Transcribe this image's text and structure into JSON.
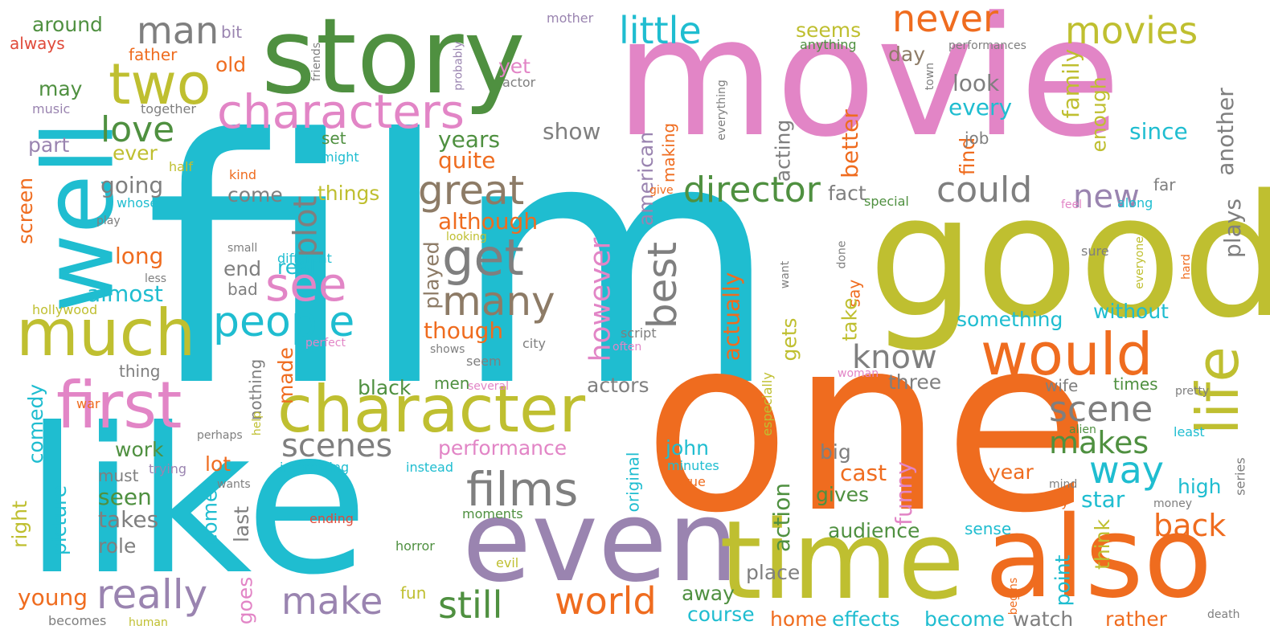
{
  "palette": {
    "cyan": "#1fbdd0",
    "orange": "#ef6c1f",
    "pink": "#e285c6",
    "olive": "#bfbf30",
    "green": "#4f9040",
    "gray": "#7f7f7f",
    "purple": "#9a84b0",
    "taupe": "#8d7b66",
    "red": "#e04a3a"
  },
  "words": [
    {
      "text": "film",
      "color": "cyan"
    },
    {
      "text": "movie",
      "color": "pink"
    },
    {
      "text": "one",
      "color": "orange"
    },
    {
      "text": "like",
      "color": "cyan"
    },
    {
      "text": "good",
      "color": "olive"
    },
    {
      "text": "even",
      "color": "purple"
    },
    {
      "text": "time",
      "color": "olive"
    },
    {
      "text": "also",
      "color": "orange"
    },
    {
      "text": "story",
      "color": "green"
    },
    {
      "text": "well",
      "color": "cyan"
    },
    {
      "text": "character",
      "color": "olive"
    },
    {
      "text": "much",
      "color": "olive"
    },
    {
      "text": "first",
      "color": "pink"
    },
    {
      "text": "two",
      "color": "olive"
    },
    {
      "text": "characters",
      "color": "pink"
    },
    {
      "text": "would",
      "color": "orange"
    },
    {
      "text": "life",
      "color": "olive"
    },
    {
      "text": "films",
      "color": "gray"
    },
    {
      "text": "see",
      "color": "pink"
    },
    {
      "text": "people",
      "color": "cyan"
    },
    {
      "text": "get",
      "color": "gray"
    },
    {
      "text": "many",
      "color": "taupe"
    },
    {
      "text": "great",
      "color": "taupe"
    },
    {
      "text": "best",
      "color": "gray"
    },
    {
      "text": "really",
      "color": "purple"
    },
    {
      "text": "make",
      "color": "purple"
    },
    {
      "text": "world",
      "color": "orange"
    },
    {
      "text": "still",
      "color": "green"
    },
    {
      "text": "way",
      "color": "cyan"
    },
    {
      "text": "scene",
      "color": "gray"
    },
    {
      "text": "scenes",
      "color": "gray"
    },
    {
      "text": "man",
      "color": "gray"
    },
    {
      "text": "little",
      "color": "cyan"
    },
    {
      "text": "movies",
      "color": "olive"
    },
    {
      "text": "never",
      "color": "orange"
    },
    {
      "text": "director",
      "color": "green"
    },
    {
      "text": "could",
      "color": "gray"
    },
    {
      "text": "new",
      "color": "purple"
    },
    {
      "text": "love",
      "color": "green"
    },
    {
      "text": "plot",
      "color": "gray"
    },
    {
      "text": "know",
      "color": "gray"
    },
    {
      "text": "makes",
      "color": "green"
    },
    {
      "text": "back",
      "color": "orange"
    },
    {
      "text": "however",
      "color": "pink"
    },
    {
      "text": "performance",
      "color": "pink"
    },
    {
      "text": "around",
      "color": "green"
    },
    {
      "text": "always",
      "color": "red"
    },
    {
      "text": "bit",
      "color": "purple"
    },
    {
      "text": "mother",
      "color": "purple"
    },
    {
      "text": "friends",
      "color": "gray"
    },
    {
      "text": "probably",
      "color": "purple"
    },
    {
      "text": "seems",
      "color": "olive"
    },
    {
      "text": "anything",
      "color": "green"
    },
    {
      "text": "performances",
      "color": "gray"
    },
    {
      "text": "father",
      "color": "orange"
    },
    {
      "text": "old",
      "color": "orange"
    },
    {
      "text": "may",
      "color": "green"
    },
    {
      "text": "music",
      "color": "purple"
    },
    {
      "text": "together",
      "color": "gray"
    },
    {
      "text": "yet",
      "color": "pink"
    },
    {
      "text": "actor",
      "color": "gray"
    },
    {
      "text": "town",
      "color": "gray"
    },
    {
      "text": "day",
      "color": "taupe"
    },
    {
      "text": "look",
      "color": "gray"
    },
    {
      "text": "every",
      "color": "cyan"
    },
    {
      "text": "enough",
      "color": "olive"
    },
    {
      "text": "family",
      "color": "olive"
    },
    {
      "text": "another",
      "color": "gray"
    },
    {
      "text": "since",
      "color": "cyan"
    },
    {
      "text": "part",
      "color": "purple"
    },
    {
      "text": "ever",
      "color": "olive"
    },
    {
      "text": "half",
      "color": "olive"
    },
    {
      "text": "set",
      "color": "green"
    },
    {
      "text": "might",
      "color": "cyan"
    },
    {
      "text": "years",
      "color": "green"
    },
    {
      "text": "quite",
      "color": "orange"
    },
    {
      "text": "show",
      "color": "gray"
    },
    {
      "text": "everything",
      "color": "gray"
    },
    {
      "text": "making",
      "color": "orange"
    },
    {
      "text": "acting",
      "color": "gray"
    },
    {
      "text": "better",
      "color": "orange"
    },
    {
      "text": "find",
      "color": "orange"
    },
    {
      "text": "job",
      "color": "gray"
    },
    {
      "text": "plays",
      "color": "gray"
    },
    {
      "text": "screen",
      "color": "orange"
    },
    {
      "text": "kind",
      "color": "orange"
    },
    {
      "text": "whose",
      "color": "cyan"
    },
    {
      "text": "going",
      "color": "gray"
    },
    {
      "text": "come",
      "color": "gray"
    },
    {
      "text": "things",
      "color": "olive"
    },
    {
      "text": "american",
      "color": "purple"
    },
    {
      "text": "give",
      "color": "orange"
    },
    {
      "text": "fact",
      "color": "gray"
    },
    {
      "text": "special",
      "color": "green"
    },
    {
      "text": "far",
      "color": "gray"
    },
    {
      "text": "feel",
      "color": "pink"
    },
    {
      "text": "along",
      "color": "cyan"
    },
    {
      "text": "play",
      "color": "gray"
    },
    {
      "text": "although",
      "color": "orange"
    },
    {
      "text": "looking",
      "color": "olive"
    },
    {
      "text": "long",
      "color": "orange"
    },
    {
      "text": "small",
      "color": "gray"
    },
    {
      "text": "different",
      "color": "cyan"
    },
    {
      "text": "less",
      "color": "gray"
    },
    {
      "text": "end",
      "color": "gray"
    },
    {
      "text": "real",
      "color": "cyan"
    },
    {
      "text": "done",
      "color": "gray"
    },
    {
      "text": "want",
      "color": "gray"
    },
    {
      "text": "sure",
      "color": "gray"
    },
    {
      "text": "everyone",
      "color": "olive"
    },
    {
      "text": "hard",
      "color": "orange"
    },
    {
      "text": "almost",
      "color": "cyan"
    },
    {
      "text": "bad",
      "color": "gray"
    },
    {
      "text": "played",
      "color": "taupe"
    },
    {
      "text": "say",
      "color": "orange"
    },
    {
      "text": "hollywood",
      "color": "olive"
    },
    {
      "text": "actually",
      "color": "orange"
    },
    {
      "text": "take",
      "color": "olive"
    },
    {
      "text": "something",
      "color": "cyan"
    },
    {
      "text": "without",
      "color": "cyan"
    },
    {
      "text": "script",
      "color": "gray"
    },
    {
      "text": "though",
      "color": "orange"
    },
    {
      "text": "perfect",
      "color": "pink"
    },
    {
      "text": "shows",
      "color": "gray"
    },
    {
      "text": "city",
      "color": "gray"
    },
    {
      "text": "often",
      "color": "pink"
    },
    {
      "text": "gets",
      "color": "olive"
    },
    {
      "text": "made",
      "color": "orange"
    },
    {
      "text": "nothing",
      "color": "gray"
    },
    {
      "text": "thing",
      "color": "gray"
    },
    {
      "text": "seem",
      "color": "gray"
    },
    {
      "text": "especially",
      "color": "olive"
    },
    {
      "text": "three",
      "color": "gray"
    },
    {
      "text": "woman",
      "color": "pink"
    },
    {
      "text": "black",
      "color": "green"
    },
    {
      "text": "men",
      "color": "green"
    },
    {
      "text": "several",
      "color": "pink"
    },
    {
      "text": "actors",
      "color": "gray"
    },
    {
      "text": "wife",
      "color": "gray"
    },
    {
      "text": "times",
      "color": "green"
    },
    {
      "text": "pretty",
      "color": "gray"
    },
    {
      "text": "comedy",
      "color": "cyan"
    },
    {
      "text": "war",
      "color": "orange"
    },
    {
      "text": "help",
      "color": "olive"
    },
    {
      "text": "alien",
      "color": "green"
    },
    {
      "text": "perhaps",
      "color": "gray"
    },
    {
      "text": "work",
      "color": "green"
    },
    {
      "text": "john",
      "color": "cyan"
    },
    {
      "text": "least",
      "color": "cyan"
    },
    {
      "text": "big",
      "color": "gray"
    },
    {
      "text": "interesting",
      "color": "cyan"
    },
    {
      "text": "minutes",
      "color": "cyan"
    },
    {
      "text": "year",
      "color": "orange"
    },
    {
      "text": "series",
      "color": "gray"
    },
    {
      "text": "trying",
      "color": "purple"
    },
    {
      "text": "instead",
      "color": "cyan"
    },
    {
      "text": "original",
      "color": "cyan"
    },
    {
      "text": "cast",
      "color": "orange"
    },
    {
      "text": "must",
      "color": "gray"
    },
    {
      "text": "lot",
      "color": "orange"
    },
    {
      "text": "wants",
      "color": "gray"
    },
    {
      "text": "true",
      "color": "orange"
    },
    {
      "text": "mind",
      "color": "gray"
    },
    {
      "text": "high",
      "color": "cyan"
    },
    {
      "text": "right",
      "color": "olive"
    },
    {
      "text": "picture",
      "color": "cyan"
    },
    {
      "text": "seen",
      "color": "green"
    },
    {
      "text": "funny",
      "color": "pink"
    },
    {
      "text": "gives",
      "color": "green"
    },
    {
      "text": "guy",
      "color": "orange"
    },
    {
      "text": "star",
      "color": "cyan"
    },
    {
      "text": "money",
      "color": "gray"
    },
    {
      "text": "takes",
      "color": "gray"
    },
    {
      "text": "comes",
      "color": "cyan"
    },
    {
      "text": "last",
      "color": "gray"
    },
    {
      "text": "ending",
      "color": "red"
    },
    {
      "text": "moments",
      "color": "green"
    },
    {
      "text": "action",
      "color": "green"
    },
    {
      "text": "sense",
      "color": "cyan"
    },
    {
      "text": "think",
      "color": "olive"
    },
    {
      "text": "role",
      "color": "gray"
    },
    {
      "text": "audience",
      "color": "green"
    },
    {
      "text": "horror",
      "color": "green"
    },
    {
      "text": "evil",
      "color": "olive"
    },
    {
      "text": "point",
      "color": "cyan"
    },
    {
      "text": "place",
      "color": "gray"
    },
    {
      "text": "young",
      "color": "orange"
    },
    {
      "text": "goes",
      "color": "pink"
    },
    {
      "text": "fun",
      "color": "olive"
    },
    {
      "text": "away",
      "color": "green"
    },
    {
      "text": "course",
      "color": "cyan"
    },
    {
      "text": "begins",
      "color": "orange"
    },
    {
      "text": "becomes",
      "color": "gray"
    },
    {
      "text": "human",
      "color": "olive"
    },
    {
      "text": "home",
      "color": "orange"
    },
    {
      "text": "effects",
      "color": "cyan"
    },
    {
      "text": "become",
      "color": "cyan"
    },
    {
      "text": "watch",
      "color": "gray"
    },
    {
      "text": "rather",
      "color": "orange"
    },
    {
      "text": "death",
      "color": "gray"
    }
  ]
}
